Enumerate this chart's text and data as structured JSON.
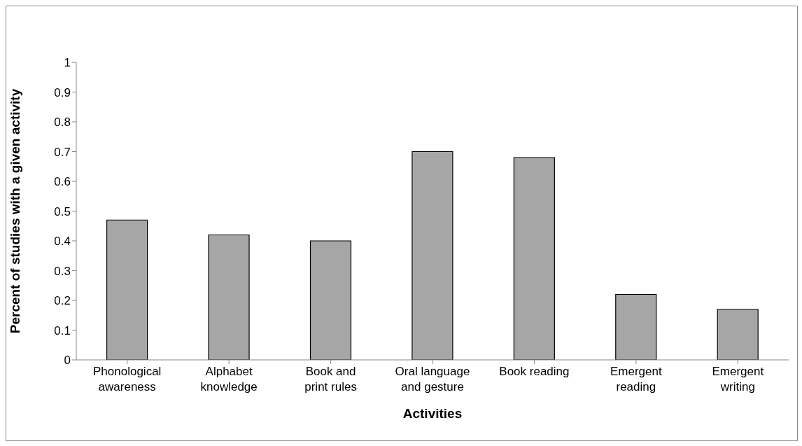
{
  "chart_data": {
    "type": "bar",
    "xlabel": "Activities",
    "ylabel": "Percent of studies with a given activity",
    "categories": [
      "Phonological awareness",
      "Alphabet knowledge",
      "Book and print rules",
      "Oral language and gesture",
      "Book reading",
      "Emergent reading",
      "Emergent writing"
    ],
    "values": [
      0.47,
      0.42,
      0.4,
      0.7,
      0.68,
      0.22,
      0.17
    ],
    "color": "#a6a6a6",
    "ylim": [
      0,
      1
    ],
    "yticks": [
      0,
      0.1,
      0.2,
      0.3,
      0.4,
      0.5,
      0.6,
      0.7,
      0.8,
      0.9,
      1
    ],
    "grid": false,
    "legend": false
  }
}
